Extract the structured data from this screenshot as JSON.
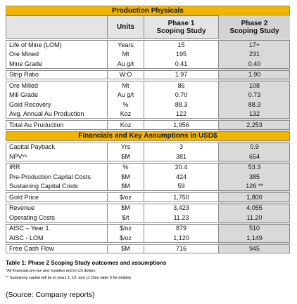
{
  "table": {
    "header": {
      "units": "Units",
      "phase1": "Phase 1 Scoping Study",
      "phase2": "Phase 2 Scoping Study"
    },
    "sections": [
      {
        "title": "Production Physicals",
        "groups": [
          [
            {
              "label": "Life of Mine (LOM)",
              "units": "Years",
              "phase1": "15",
              "phase2": "17+"
            },
            {
              "label": "Ore Mined",
              "units": "Mt",
              "phase1": "195",
              "phase2": "231"
            },
            {
              "label": "Mine Grade",
              "units": "Au g/t",
              "phase1": "0.41",
              "phase2": "0.40"
            }
          ],
          [
            {
              "label": "Strip Ratio",
              "units": "W:O",
              "phase1": "1.97",
              "phase2": "1.90"
            }
          ],
          [
            {
              "label": "Ore Milled",
              "units": "Mt",
              "phase1": "86",
              "phase2": "108"
            },
            {
              "label": "Mill Grade",
              "units": "Au g/t",
              "phase1": "0.70",
              "phase2": "0.73"
            },
            {
              "label": "Gold Recovery",
              "units": "%",
              "phase1": "88.3",
              "phase2": "88.3"
            },
            {
              "label": "Avg. Annual Au Production",
              "units": "Koz",
              "phase1": "122",
              "phase2": "132"
            }
          ],
          [
            {
              "label": "Total Au Production",
              "units": "Koz",
              "phase1": "1,956",
              "phase2": "2,253"
            }
          ]
        ]
      },
      {
        "title": "Financials and Key Assumptions in USD$",
        "groups": [
          [
            {
              "label": "Capital Payback",
              "units": "Yrs",
              "phase1": "3",
              "phase2": "0.9"
            },
            {
              "label": "NPV",
              "label_sub": "5%",
              "units": "$M",
              "phase1": "381",
              "phase2": "654"
            }
          ],
          [
            {
              "label": "IRR",
              "units": "%",
              "phase1": "20.4",
              "phase2": "53.3"
            },
            {
              "label": "Pre-Production Capital Costs",
              "units": "$M",
              "phase1": "424",
              "phase2": "385"
            },
            {
              "label": "Sustaining Capital Costs",
              "units": "$M",
              "phase1": "59",
              "phase2": "126 **"
            }
          ],
          [
            {
              "label": "Gold Price",
              "units": "$/oz",
              "phase1": "1,750",
              "phase2": "1,800"
            }
          ],
          [
            {
              "label": "Revenue",
              "units": "$M",
              "phase1": "3,423",
              "phase2": "4,055"
            },
            {
              "label": "Operating Costs",
              "units": "$/t",
              "phase1": "11.23",
              "phase2": "11.20"
            }
          ],
          [
            {
              "label": "AISC – Year 1",
              "units": "$/oz",
              "phase1": "879",
              "phase2": "510"
            },
            {
              "label": "AISC - LOM",
              "units": "$/oz",
              "phase1": "1,120",
              "phase2": "1,149"
            }
          ],
          [
            {
              "label": "Free Cash Flow",
              "units": "$M",
              "phase1": "716",
              "phase2": "945"
            }
          ]
        ]
      }
    ]
  },
  "caption": {
    "title": "Table 1: Phase 2 Scoping Study outcomes and assumptions",
    "notes": [
      "*All financials pre-tax and royalties and in US dollars",
      "** Sustaining capital will be in years 1, 10, and 11 (See table 6 for details)"
    ]
  },
  "source": "(Source: Company reports)"
}
